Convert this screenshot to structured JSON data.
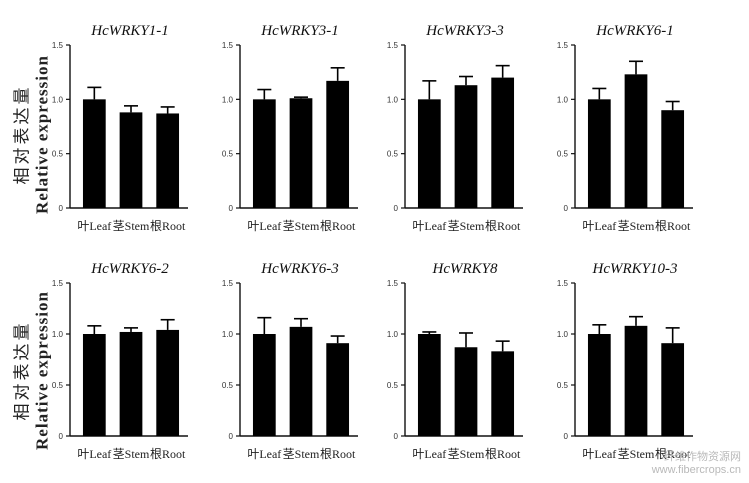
{
  "y_axis_label": {
    "zh": "相对表达量",
    "en": "Relative expression"
  },
  "watermark": {
    "line1": "纤维作物资源网",
    "line2": "www.fibercrops.cn"
  },
  "chart_data": [
    {
      "type": "bar",
      "title": "HcWRKY1-1",
      "categories": [
        "叶Leaf",
        "茎Stem",
        "根Root"
      ],
      "values": [
        1.0,
        0.88,
        0.87
      ],
      "error": [
        0.11,
        0.06,
        0.06
      ],
      "ylim": [
        0,
        1.5
      ],
      "yticks": [
        "0",
        "0.5",
        "1.0",
        "1.5"
      ]
    },
    {
      "type": "bar",
      "title": "HcWRKY3-1",
      "categories": [
        "叶Leaf",
        "茎Stem",
        "根Root"
      ],
      "values": [
        1.0,
        1.01,
        1.17
      ],
      "error": [
        0.09,
        0.01,
        0.12
      ],
      "ylim": [
        0,
        1.5
      ],
      "yticks": [
        "0",
        "0.5",
        "1.0",
        "1.5"
      ]
    },
    {
      "type": "bar",
      "title": "HcWRKY3-3",
      "categories": [
        "叶Leaf",
        "茎Stem",
        "根Root"
      ],
      "values": [
        1.0,
        1.13,
        1.2
      ],
      "error": [
        0.17,
        0.08,
        0.11
      ],
      "ylim": [
        0,
        1.5
      ],
      "yticks": [
        "0",
        "0.5",
        "1.0",
        "1.5"
      ]
    },
    {
      "type": "bar",
      "title": "HcWRKY6-1",
      "categories": [
        "叶Leaf",
        "茎Stem",
        "根Root"
      ],
      "values": [
        1.0,
        1.23,
        0.9
      ],
      "error": [
        0.1,
        0.12,
        0.08
      ],
      "ylim": [
        0,
        1.5
      ],
      "yticks": [
        "0",
        "0.5",
        "1.0",
        "1.5"
      ]
    },
    {
      "type": "bar",
      "title": "HcWRKY6-2",
      "categories": [
        "叶Leaf",
        "茎Stem",
        "根Root"
      ],
      "values": [
        1.0,
        1.02,
        1.04
      ],
      "error": [
        0.08,
        0.04,
        0.1
      ],
      "ylim": [
        0,
        1.5
      ],
      "yticks": [
        "0",
        "0.5",
        "1.0",
        "1.5"
      ]
    },
    {
      "type": "bar",
      "title": "HcWRKY6-3",
      "categories": [
        "叶Leaf",
        "茎Stem",
        "根Root"
      ],
      "values": [
        1.0,
        1.07,
        0.91
      ],
      "error": [
        0.16,
        0.08,
        0.07
      ],
      "ylim": [
        0,
        1.5
      ],
      "yticks": [
        "0",
        "0.5",
        "1.0",
        "1.5"
      ]
    },
    {
      "type": "bar",
      "title": "HcWRKY8",
      "categories": [
        "叶Leaf",
        "茎Stem",
        "根Root"
      ],
      "values": [
        1.0,
        0.87,
        0.83
      ],
      "error": [
        0.02,
        0.14,
        0.1
      ],
      "ylim": [
        0,
        1.5
      ],
      "yticks": [
        "0",
        "0.5",
        "1.0",
        "1.5"
      ]
    },
    {
      "type": "bar",
      "title": "HcWRKY10-3",
      "categories": [
        "叶Leaf",
        "茎Stem",
        "根Root"
      ],
      "values": [
        1.0,
        1.08,
        0.91
      ],
      "error": [
        0.09,
        0.09,
        0.15
      ],
      "ylim": [
        0,
        1.5
      ],
      "yticks": [
        "0",
        "0.5",
        "1.0",
        "1.5"
      ]
    }
  ]
}
